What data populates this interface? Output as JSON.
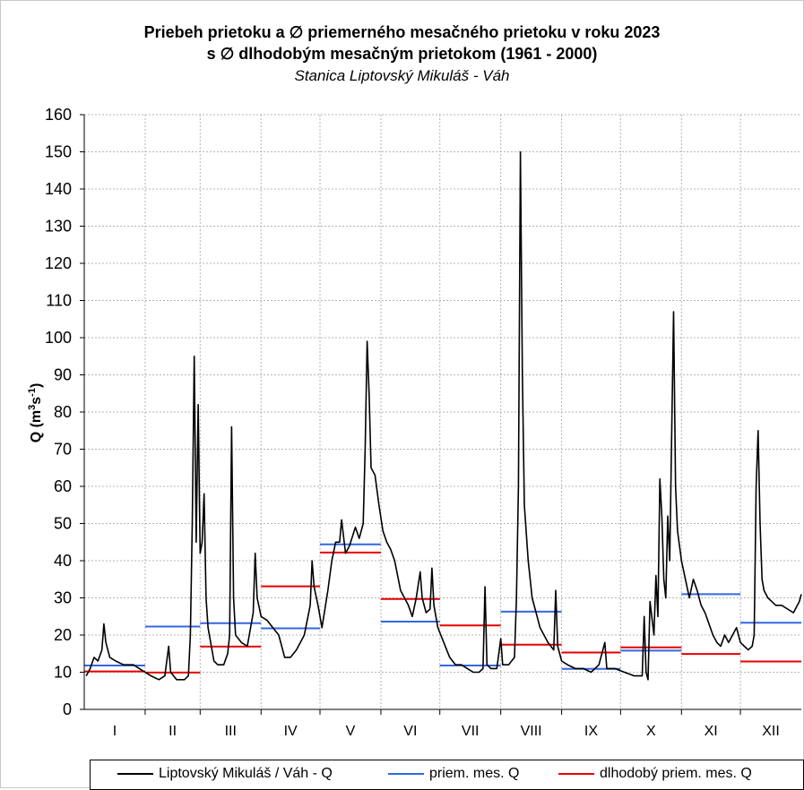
{
  "chart_data": {
    "type": "line",
    "title": "Priebeh prietoku a ∅ priemerného mesačného prietoku v roku 2023",
    "subtitle": "s ∅ dlhodobým mesačným prietokom (1961 - 2000)",
    "station": "Stanica Liptovský Mikuláš - Váh",
    "ylabel": "Q (m³s⁻¹)",
    "ylim": [
      0,
      160
    ],
    "yticks": [
      0,
      10,
      20,
      30,
      40,
      50,
      60,
      70,
      80,
      90,
      100,
      110,
      120,
      130,
      140,
      150,
      160
    ],
    "grid": true,
    "months": [
      "I",
      "II",
      "III",
      "IV",
      "V",
      "VI",
      "VII",
      "VIII",
      "IX",
      "X",
      "XI",
      "XII"
    ],
    "month_days": [
      31,
      28,
      31,
      30,
      31,
      30,
      31,
      31,
      30,
      31,
      30,
      31
    ],
    "series": [
      {
        "name": "Liptovský Mikuláš / Váh - Q",
        "color": "#000000",
        "points": [
          [
            1,
            9
          ],
          [
            3,
            11
          ],
          [
            5,
            14
          ],
          [
            7,
            13
          ],
          [
            9,
            16
          ],
          [
            10,
            23
          ],
          [
            11,
            18
          ],
          [
            13,
            14
          ],
          [
            16,
            13
          ],
          [
            20,
            12
          ],
          [
            25,
            12
          ],
          [
            28,
            11
          ],
          [
            31,
            10
          ],
          [
            34,
            9
          ],
          [
            38,
            8
          ],
          [
            41,
            9
          ],
          [
            43,
            17
          ],
          [
            44,
            10
          ],
          [
            47,
            8
          ],
          [
            51,
            8
          ],
          [
            53,
            9
          ],
          [
            54,
            20
          ],
          [
            55,
            50
          ],
          [
            56,
            95
          ],
          [
            57,
            45
          ],
          [
            58,
            82
          ],
          [
            59,
            42
          ],
          [
            60,
            45
          ],
          [
            61,
            58
          ],
          [
            62,
            30
          ],
          [
            63,
            22
          ],
          [
            66,
            13
          ],
          [
            68,
            12
          ],
          [
            71,
            12
          ],
          [
            73,
            15
          ],
          [
            74,
            20
          ],
          [
            75,
            76
          ],
          [
            76,
            30
          ],
          [
            77,
            20
          ],
          [
            80,
            18
          ],
          [
            83,
            17
          ],
          [
            86,
            26
          ],
          [
            87,
            42
          ],
          [
            88,
            30
          ],
          [
            90,
            25
          ],
          [
            93,
            24
          ],
          [
            96,
            22
          ],
          [
            99,
            20
          ],
          [
            102,
            14
          ],
          [
            105,
            14
          ],
          [
            108,
            16
          ],
          [
            112,
            20
          ],
          [
            115,
            28
          ],
          [
            116,
            40
          ],
          [
            117,
            33
          ],
          [
            119,
            28
          ],
          [
            121,
            22
          ],
          [
            124,
            32
          ],
          [
            126,
            40
          ],
          [
            128,
            45
          ],
          [
            130,
            45
          ],
          [
            131,
            51
          ],
          [
            133,
            42
          ],
          [
            135,
            44
          ],
          [
            138,
            49
          ],
          [
            140,
            46
          ],
          [
            142,
            50
          ],
          [
            143,
            70
          ],
          [
            144,
            99
          ],
          [
            145,
            85
          ],
          [
            146,
            65
          ],
          [
            148,
            63
          ],
          [
            150,
            55
          ],
          [
            152,
            48
          ],
          [
            154,
            45
          ],
          [
            156,
            43
          ],
          [
            158,
            40
          ],
          [
            161,
            32
          ],
          [
            163,
            30
          ],
          [
            165,
            28
          ],
          [
            167,
            25
          ],
          [
            169,
            30
          ],
          [
            171,
            37
          ],
          [
            172,
            30
          ],
          [
            174,
            26
          ],
          [
            176,
            27
          ],
          [
            177,
            38
          ],
          [
            178,
            28
          ],
          [
            180,
            22
          ],
          [
            183,
            18
          ],
          [
            186,
            14
          ],
          [
            189,
            12
          ],
          [
            192,
            12
          ],
          [
            195,
            11
          ],
          [
            198,
            10
          ],
          [
            201,
            10
          ],
          [
            203,
            11
          ],
          [
            204,
            33
          ],
          [
            205,
            12
          ],
          [
            207,
            11
          ],
          [
            210,
            11
          ],
          [
            212,
            19
          ],
          [
            213,
            12
          ],
          [
            216,
            12
          ],
          [
            219,
            14
          ],
          [
            220,
            30
          ],
          [
            221,
            60
          ],
          [
            222,
            150
          ],
          [
            223,
            90
          ],
          [
            224,
            55
          ],
          [
            226,
            40
          ],
          [
            228,
            30
          ],
          [
            232,
            22
          ],
          [
            236,
            18
          ],
          [
            239,
            16
          ],
          [
            240,
            32
          ],
          [
            241,
            17
          ],
          [
            243,
            13
          ],
          [
            246,
            12
          ],
          [
            250,
            11
          ],
          [
            254,
            11
          ],
          [
            258,
            10
          ],
          [
            262,
            12
          ],
          [
            265,
            18
          ],
          [
            266,
            11
          ],
          [
            270,
            11
          ],
          [
            275,
            10
          ],
          [
            280,
            9
          ],
          [
            284,
            9
          ],
          [
            285,
            25
          ],
          [
            286,
            10
          ],
          [
            287,
            8
          ],
          [
            288,
            29
          ],
          [
            290,
            20
          ],
          [
            291,
            36
          ],
          [
            292,
            25
          ],
          [
            293,
            62
          ],
          [
            294,
            52
          ],
          [
            295,
            35
          ],
          [
            296,
            30
          ],
          [
            297,
            52
          ],
          [
            298,
            40
          ],
          [
            300,
            107
          ],
          [
            301,
            60
          ],
          [
            302,
            48
          ],
          [
            304,
            40
          ],
          [
            306,
            35
          ],
          [
            308,
            30
          ],
          [
            310,
            35
          ],
          [
            312,
            32
          ],
          [
            314,
            28
          ],
          [
            316,
            26
          ],
          [
            318,
            23
          ],
          [
            320,
            20
          ],
          [
            322,
            18
          ],
          [
            324,
            17
          ],
          [
            326,
            20
          ],
          [
            328,
            18
          ],
          [
            330,
            20
          ],
          [
            332,
            22
          ],
          [
            334,
            18
          ],
          [
            336,
            17
          ],
          [
            338,
            16
          ],
          [
            340,
            17
          ],
          [
            341,
            20
          ],
          [
            342,
            60
          ],
          [
            343,
            75
          ],
          [
            344,
            50
          ],
          [
            345,
            35
          ],
          [
            346,
            32
          ],
          [
            348,
            30
          ],
          [
            350,
            29
          ],
          [
            352,
            28
          ],
          [
            355,
            28
          ],
          [
            358,
            27
          ],
          [
            361,
            26
          ],
          [
            364,
            29
          ],
          [
            365,
            31
          ]
        ]
      },
      {
        "name": "priem. mes. Q",
        "color": "#3366e6",
        "monthly": [
          11.8,
          22.3,
          23.2,
          21.8,
          44.4,
          23.6,
          11.8,
          26.3,
          10.9,
          15.8,
          31.0,
          23.3
        ]
      },
      {
        "name": "dlhodobý priem. mes. Q",
        "color": "#e60000",
        "monthly": [
          10.2,
          9.9,
          16.9,
          33.1,
          42.2,
          29.7,
          22.6,
          17.4,
          15.3,
          16.7,
          14.9,
          12.9
        ]
      }
    ]
  }
}
